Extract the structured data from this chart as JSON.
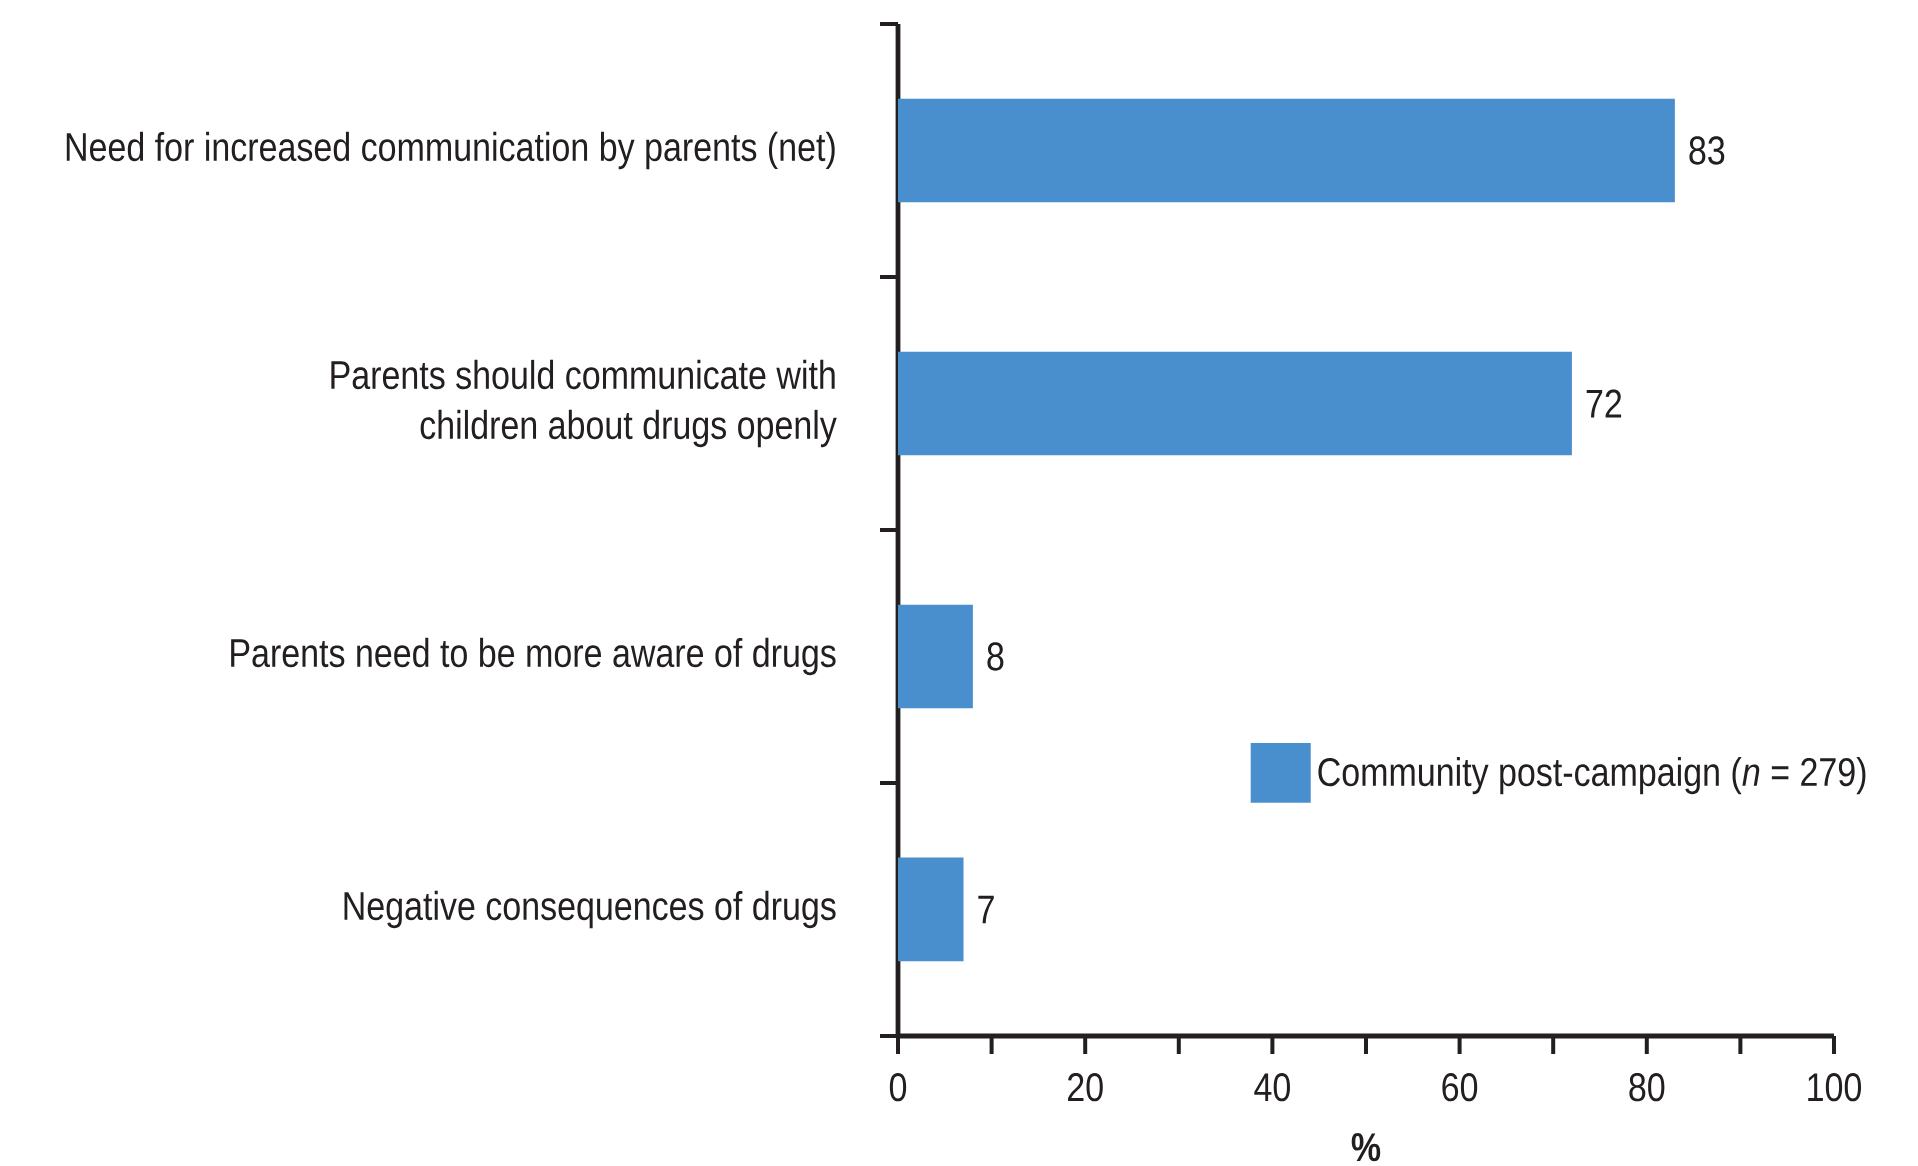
{
  "chart_data": {
    "type": "bar",
    "orientation": "horizontal",
    "categories": [
      "Need for increased communication by parents (net)",
      "Parents should communicate with children about drugs openly",
      "Parents need to be more aware of drugs",
      "Negative consequences of drugs"
    ],
    "series": [
      {
        "name": "Community post-campaign (*n* = 279)",
        "color": "#4a8fcd",
        "values": [
          83,
          72,
          8,
          7
        ]
      }
    ],
    "xlabel": "%",
    "xlim": [
      0,
      100
    ],
    "xticks": [
      0,
      {
        "value": 10,
        "label": null
      },
      20,
      {
        "value": 30,
        "label": null
      },
      40,
      {
        "value": 50,
        "label": null
      },
      60,
      {
        "value": 70,
        "label": null
      },
      80,
      {
        "value": 90,
        "label": null
      },
      100
    ],
    "data_labels": true,
    "legend": "bottom right"
  }
}
